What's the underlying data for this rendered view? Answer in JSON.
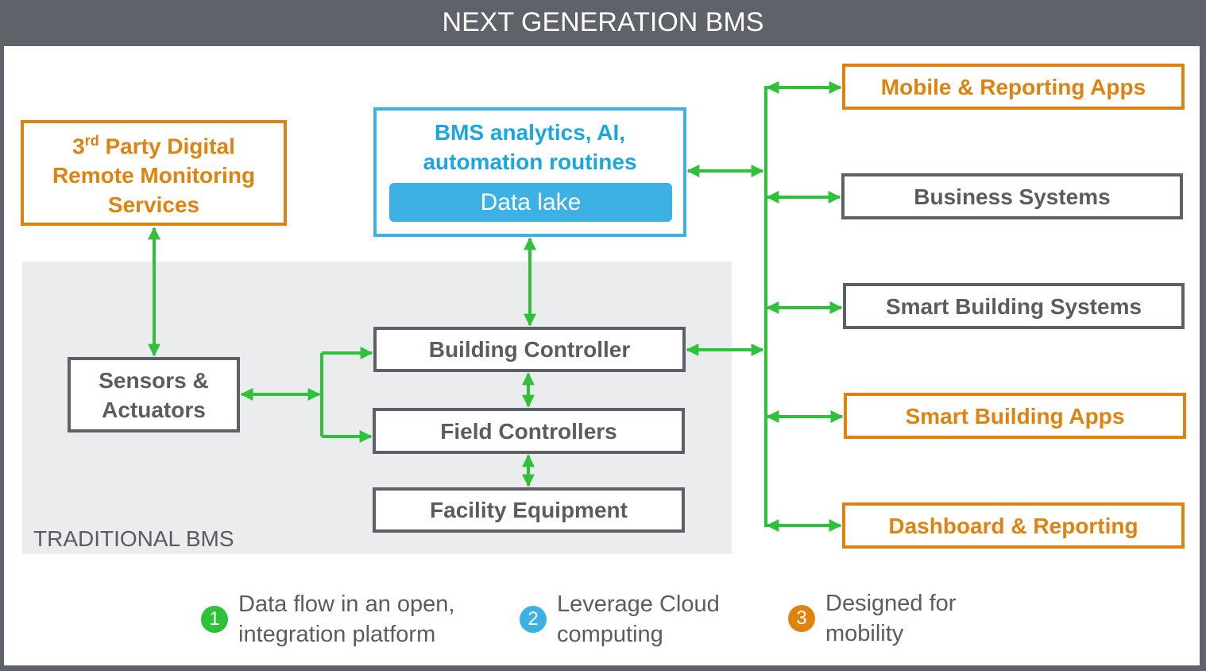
{
  "title": "NEXT GENERATION BMS",
  "colors": {
    "frame": "#5f6269",
    "orange": "#e0820f",
    "blue": "#3db1e4",
    "green": "#2fc13a",
    "gray": "#5d6066"
  },
  "third_party": {
    "sup_prefix": "3",
    "sup": "rd",
    "line1_rest": " Party Digital",
    "line2": "Remote Monitoring",
    "line3": "Services"
  },
  "analytics": {
    "line1": "BMS analytics, AI,",
    "line2": "automation routines",
    "data_lake": "Data lake"
  },
  "traditional": {
    "label": "TRADITIONAL BMS",
    "sensors_line1": "Sensors &",
    "sensors_line2": "Actuators",
    "building_controller": "Building Controller",
    "field_controllers": "Field Controllers",
    "facility_equipment": "Facility Equipment"
  },
  "right": [
    "Mobile & Reporting Apps",
    "Business Systems",
    "Smart Building Systems",
    "Smart Building Apps",
    "Dashboard & Reporting"
  ],
  "legend": [
    {
      "num": "1",
      "line1": "Data flow in an open,",
      "line2": "integration platform",
      "color": "#2fc13a"
    },
    {
      "num": "2",
      "line1": "Leverage Cloud",
      "line2": "computing",
      "color": "#3db1e4"
    },
    {
      "num": "3",
      "line1": "Designed for",
      "line2": "mobility",
      "color": "#e0820f"
    }
  ]
}
